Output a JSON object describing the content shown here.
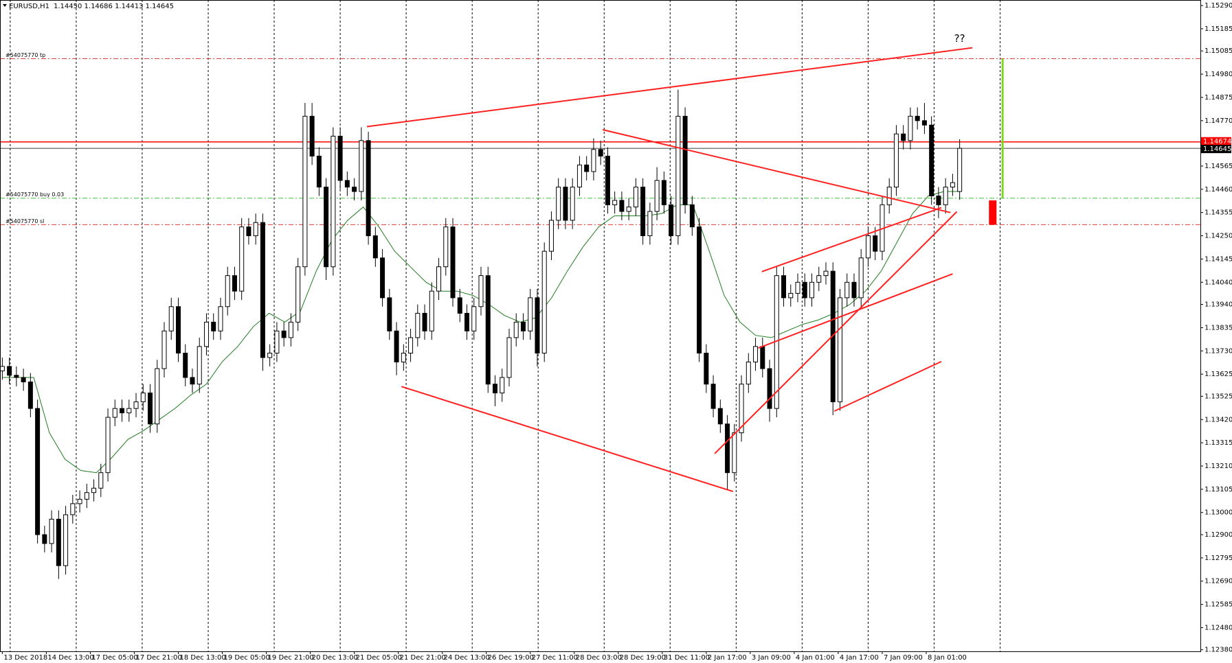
{
  "chart_data": {
    "type": "candlestick",
    "title": "EURUSD,H1",
    "quote": "1.14450 1.14686 1.14413 1.14645",
    "up_color": "#ffffff",
    "down_color": "#000000",
    "open": [
      1.1364,
      1.1366,
      1.1362,
      1.1361,
      1.1359,
      1.1347,
      1.129,
      1.1286,
      1.1297,
      1.1276,
      1.1299,
      1.1304,
      1.1306,
      1.1309,
      1.1311,
      1.1318,
      1.1343,
      1.1347,
      1.1345,
      1.1347,
      1.135,
      1.1354,
      1.134,
      1.1365,
      1.1382,
      1.1393,
      1.1372,
      1.1361,
      1.1358,
      1.1375,
      1.1386,
      1.1382,
      1.1393,
      1.1407,
      1.14,
      1.1429,
      1.1425,
      1.1431,
      1.137,
      1.1372,
      1.1382,
      1.1379,
      1.1386,
      1.1411,
      1.1479,
      1.1461,
      1.1447,
      1.1411,
      1.147,
      1.145,
      1.1447,
      1.1445,
      1.1468,
      1.1425,
      1.1415,
      1.1397,
      1.1382,
      1.1368,
      1.1372,
      1.1379,
      1.139,
      1.1382,
      1.14,
      1.1411,
      1.1429,
      1.1397,
      1.139,
      1.1382,
      1.1393,
      1.1407,
      1.1358,
      1.1354,
      1.1361,
      1.1379,
      1.1386,
      1.1382,
      1.1397,
      1.1372,
      1.1418,
      1.1432,
      1.1447,
      1.1432,
      1.1447,
      1.1457,
      1.1454,
      1.1464,
      1.1461,
      1.1439,
      1.1441,
      1.1436,
      1.1438,
      1.1447,
      1.1425,
      1.1436,
      1.145,
      1.1439,
      1.1425,
      1.1479,
      1.1439,
      1.1429,
      1.1372,
      1.1358,
      1.1347,
      1.134,
      1.1318,
      1.1336,
      1.1358,
      1.1368,
      1.1375,
      1.1365,
      1.1347,
      1.1407,
      1.1397,
      1.1399,
      1.1404,
      1.1397,
      1.1404,
      1.1407,
      1.1409,
      1.135,
      1.1397,
      1.1404,
      1.1397,
      1.1415,
      1.1425,
      1.1418,
      1.1439,
      1.1447,
      1.1471,
      1.1468,
      1.1479,
      1.1477,
      1.1475,
      1.1443,
      1.1439,
      1.1447,
      1.1445
    ],
    "high": [
      1.137,
      1.137,
      1.1366,
      1.1365,
      1.1363,
      1.1351,
      1.1294,
      1.1301,
      1.1301,
      1.1303,
      1.1308,
      1.131,
      1.1313,
      1.1315,
      1.1322,
      1.1347,
      1.1351,
      1.1351,
      1.1351,
      1.1354,
      1.1358,
      1.1358,
      1.1369,
      1.1386,
      1.1397,
      1.1397,
      1.1376,
      1.1365,
      1.1379,
      1.139,
      1.139,
      1.1397,
      1.1411,
      1.1411,
      1.1433,
      1.1433,
      1.1435,
      1.1435,
      1.1376,
      1.1386,
      1.1386,
      1.139,
      1.1415,
      1.1485,
      1.1485,
      1.1465,
      1.1451,
      1.1474,
      1.1474,
      1.1454,
      1.1451,
      1.1474,
      1.1472,
      1.1429,
      1.1419,
      1.1401,
      1.1386,
      1.1376,
      1.1383,
      1.1394,
      1.1394,
      1.1404,
      1.1415,
      1.1433,
      1.1433,
      1.1401,
      1.1394,
      1.1397,
      1.1411,
      1.1411,
      1.1362,
      1.1365,
      1.1383,
      1.139,
      1.139,
      1.1401,
      1.1401,
      1.1422,
      1.1436,
      1.1451,
      1.1451,
      1.1451,
      1.1461,
      1.1461,
      1.1469,
      1.1468,
      1.1465,
      1.1445,
      1.1445,
      1.1442,
      1.1451,
      1.1451,
      1.144,
      1.1456,
      1.1454,
      1.1443,
      1.1491,
      1.1483,
      1.1443,
      1.1433,
      1.1376,
      1.1362,
      1.1351,
      1.1344,
      1.134,
      1.1362,
      1.1372,
      1.1379,
      1.1379,
      1.1369,
      1.1411,
      1.1411,
      1.1403,
      1.1408,
      1.1408,
      1.1408,
      1.1411,
      1.1413,
      1.1413,
      1.1401,
      1.1408,
      1.1408,
      1.1419,
      1.1429,
      1.1429,
      1.1443,
      1.1451,
      1.1475,
      1.1475,
      1.1483,
      1.1483,
      1.1485,
      1.1479,
      1.1447,
      1.1451,
      1.1453,
      1.14686
    ],
    "low": [
      1.136,
      1.1358,
      1.1357,
      1.1355,
      1.1343,
      1.1286,
      1.1282,
      1.1282,
      1.127,
      1.1272,
      1.1295,
      1.13,
      1.1302,
      1.1305,
      1.1307,
      1.1314,
      1.1339,
      1.1341,
      1.1341,
      1.1343,
      1.1346,
      1.1336,
      1.1336,
      1.1361,
      1.1378,
      1.1368,
      1.1357,
      1.1354,
      1.1354,
      1.1371,
      1.1378,
      1.1378,
      1.1389,
      1.1396,
      1.1396,
      1.1421,
      1.1421,
      1.1364,
      1.1366,
      1.1368,
      1.1375,
      1.1375,
      1.1382,
      1.1407,
      1.1457,
      1.1443,
      1.1405,
      1.1407,
      1.1446,
      1.1443,
      1.1441,
      1.1441,
      1.1421,
      1.1411,
      1.1393,
      1.1378,
      1.1362,
      1.1364,
      1.1368,
      1.1375,
      1.1378,
      1.1378,
      1.1396,
      1.1407,
      1.1393,
      1.1386,
      1.1378,
      1.1378,
      1.1389,
      1.1354,
      1.1348,
      1.135,
      1.1357,
      1.1375,
      1.1378,
      1.1378,
      1.1366,
      1.1368,
      1.1414,
      1.1428,
      1.1428,
      1.1428,
      1.1443,
      1.145,
      1.145,
      1.1457,
      1.1435,
      1.1435,
      1.1432,
      1.1432,
      1.1434,
      1.1421,
      1.1421,
      1.1432,
      1.1435,
      1.1421,
      1.1421,
      1.1435,
      1.1425,
      1.1368,
      1.1354,
      1.1343,
      1.1336,
      1.131,
      1.1314,
      1.1332,
      1.1354,
      1.1364,
      1.1361,
      1.1341,
      1.1343,
      1.1393,
      1.1393,
      1.1395,
      1.1393,
      1.1393,
      1.14,
      1.1403,
      1.1344,
      1.1346,
      1.1393,
      1.1393,
      1.1393,
      1.1411,
      1.1414,
      1.1414,
      1.1435,
      1.1443,
      1.1464,
      1.1464,
      1.1473,
      1.1471,
      1.1439,
      1.1433,
      1.1435,
      1.1443,
      1.14413
    ],
    "close": [
      1.1366,
      1.1362,
      1.1361,
      1.1359,
      1.1347,
      1.129,
      1.1286,
      1.1297,
      1.1276,
      1.1299,
      1.1304,
      1.1306,
      1.1309,
      1.1311,
      1.1318,
      1.1343,
      1.1347,
      1.1345,
      1.1347,
      1.135,
      1.1354,
      1.134,
      1.1365,
      1.1382,
      1.1393,
      1.1372,
      1.1361,
      1.1358,
      1.1375,
      1.1386,
      1.1382,
      1.1393,
      1.1407,
      1.14,
      1.1429,
      1.1425,
      1.1431,
      1.137,
      1.1372,
      1.1382,
      1.1379,
      1.1386,
      1.1411,
      1.1479,
      1.1461,
      1.1447,
      1.1411,
      1.147,
      1.145,
      1.1447,
      1.1445,
      1.1468,
      1.1425,
      1.1415,
      1.1397,
      1.1382,
      1.1368,
      1.1372,
      1.1379,
      1.139,
      1.1382,
      1.14,
      1.1411,
      1.1429,
      1.1397,
      1.139,
      1.1382,
      1.1393,
      1.1407,
      1.1358,
      1.1354,
      1.1361,
      1.1379,
      1.1386,
      1.1382,
      1.1397,
      1.1372,
      1.1418,
      1.1432,
      1.1447,
      1.1432,
      1.1447,
      1.1457,
      1.1454,
      1.1464,
      1.1461,
      1.1439,
      1.1441,
      1.1436,
      1.1438,
      1.1447,
      1.1425,
      1.1436,
      1.145,
      1.1439,
      1.1425,
      1.1479,
      1.1439,
      1.1429,
      1.1372,
      1.1358,
      1.1347,
      1.134,
      1.1318,
      1.1336,
      1.1358,
      1.1368,
      1.1375,
      1.1365,
      1.1347,
      1.1407,
      1.1397,
      1.1399,
      1.1404,
      1.1397,
      1.1404,
      1.1407,
      1.1409,
      1.135,
      1.1397,
      1.1404,
      1.1397,
      1.1415,
      1.1425,
      1.1418,
      1.1439,
      1.1447,
      1.1471,
      1.1468,
      1.1479,
      1.1477,
      1.1475,
      1.1443,
      1.1439,
      1.1447,
      1.1449,
      1.14645
    ],
    "ma": {
      "color": "#1e7d1e",
      "values": [
        1.1361,
        1.1361,
        1.1361,
        1.1336,
        1.1324,
        1.1319,
        1.1318,
        1.1325,
        1.1333,
        1.1337,
        1.1342,
        1.1347,
        1.1353,
        1.1358,
        1.1368,
        1.1375,
        1.1384,
        1.139,
        1.1386,
        1.1391,
        1.1409,
        1.1423,
        1.1432,
        1.1438,
        1.1429,
        1.1418,
        1.1411,
        1.1404,
        1.14,
        1.14,
        1.1398,
        1.1394,
        1.1389,
        1.1386,
        1.1388,
        1.1397,
        1.1409,
        1.142,
        1.1429,
        1.1434,
        1.1434,
        1.1434,
        1.1435,
        1.1439,
        1.1439,
        1.1419,
        1.1398,
        1.1386,
        1.138,
        1.1379,
        1.1382,
        1.1385,
        1.1387,
        1.139,
        1.1394,
        1.14,
        1.1409,
        1.1422,
        1.1435,
        1.1443,
        1.1445,
        1.1445
      ]
    },
    "xlim": [
      -0.33,
      170.2
    ],
    "xticks": [
      {
        "value": 0,
        "label": "13 Dec 2018"
      },
      {
        "value": 6.25,
        "label": "14 Dec 13:00"
      },
      {
        "value": 12.5,
        "label": "17 Dec 05:00"
      },
      {
        "value": 18.75,
        "label": "17 Dec 21:00"
      },
      {
        "value": 25,
        "label": "18 Dec 13:00"
      },
      {
        "value": 31.25,
        "label": "19 Dec 05:00"
      },
      {
        "value": 37.5,
        "label": "19 Dec 21:00"
      },
      {
        "value": 43.75,
        "label": "20 Dec 13:00"
      },
      {
        "value": 50,
        "label": "21 Dec 05:00"
      },
      {
        "value": 56.25,
        "label": "21 Dec 21:00"
      },
      {
        "value": 62.5,
        "label": "24 Dec 13:00"
      },
      {
        "value": 68.75,
        "label": "26 Dec 19:00"
      },
      {
        "value": 75,
        "label": "27 Dec 11:00"
      },
      {
        "value": 81.25,
        "label": "28 Dec 03:00"
      },
      {
        "value": 87.5,
        "label": "28 Dec 19:00"
      },
      {
        "value": 93.75,
        "label": "31 Dec 11:00"
      },
      {
        "value": 100,
        "label": "2 Jan 17:00"
      },
      {
        "value": 106.25,
        "label": "3 Jan 09:00"
      },
      {
        "value": 112.5,
        "label": "4 Jan 01:00"
      },
      {
        "value": 118.75,
        "label": "4 Jan 17:00"
      },
      {
        "value": 125,
        "label": "7 Jan 09:00"
      },
      {
        "value": 131.25,
        "label": "8 Jan 01:00"
      }
    ],
    "vgrid": [
      1.12,
      10.5,
      19.87,
      29.25,
      38.62,
      48,
      57.37,
      66.75,
      76.12,
      85.5,
      94.87,
      104.25,
      113.62,
      123,
      132.37,
      141.75
    ],
    "ylim": [
      1.12373,
      1.15315
    ],
    "yticks": [
      {
        "value": 1.1529,
        "label": "1.15290"
      },
      1.15185,
      1.15085,
      {
        "value": 1.1498,
        "label": "1.14980"
      },
      1.14875,
      {
        "value": 1.1477,
        "label": "1.14770"
      },
      1.14565,
      {
        "value": 1.1446,
        "label": "1.14460"
      },
      1.14355,
      {
        "value": 1.1425,
        "label": "1.14250"
      },
      1.14145,
      {
        "value": 1.1404,
        "label": "1.14040"
      },
      {
        "value": 1.1394,
        "label": "1.13940"
      },
      1.13835,
      {
        "value": 1.1373,
        "label": "1.13730"
      },
      1.13625,
      1.13525,
      {
        "value": 1.1342,
        "label": "1.13420"
      },
      1.13315,
      {
        "value": 1.1321,
        "label": "1.13210"
      },
      1.13105,
      {
        "value": 1.13,
        "label": "1.13000"
      },
      {
        "value": 1.129,
        "label": "1.12900"
      },
      1.12795,
      {
        "value": 1.1269,
        "label": "1.12690"
      },
      1.12585,
      {
        "value": 1.1248,
        "label": "1.12480"
      },
      {
        "value": 1.1238,
        "label": "1.12380"
      }
    ],
    "grid": true,
    "price_lines": [
      {
        "value": 1.14674,
        "color": "#ff0000"
      },
      {
        "value": 1.14645,
        "color": "#000000"
      }
    ],
    "levels": [
      {
        "label": "#54075770 tp",
        "value": 1.1505,
        "color": "#e03a3a"
      },
      {
        "label": "#54075770 buy 0.03",
        "value": 1.1442,
        "color": "#3cbf3c"
      },
      {
        "label": "#54075770 sl",
        "value": 1.143,
        "color": "#e03a3a"
      }
    ],
    "trendlines": {
      "color": "#ff2020",
      "lines": [
        {
          "from": [
            51.8,
            1.14743
          ],
          "to": [
            137.8,
            1.15099
          ]
        },
        {
          "from": [
            85.3,
            1.14729
          ],
          "to": [
            134.7,
            1.14355
          ]
        },
        {
          "from": [
            56.7,
            1.13569
          ],
          "to": [
            103.8,
            1.13095
          ]
        },
        {
          "from": [
            101.2,
            1.13266
          ],
          "to": [
            135.6,
            1.14359
          ]
        },
        {
          "from": [
            107.9,
            1.14088
          ],
          "to": [
            133.4,
            1.14377
          ]
        },
        {
          "from": [
            107.4,
            1.13743
          ],
          "to": [
            135.0,
            1.14078
          ]
        },
        {
          "from": [
            118.2,
            1.13458
          ],
          "to": [
            133.4,
            1.13682
          ]
        }
      ]
    },
    "annotations": [
      {
        "text": "??",
        "x": 136,
        "y": 1.1514
      }
    ],
    "bars": [
      {
        "x": 142.1,
        "from": 1.1505,
        "to": 1.1442,
        "color": "#7ed321",
        "width": 3
      },
      {
        "x": 140.7,
        "from": 1.1441,
        "to": 1.143,
        "color": "#ff0000",
        "width": 11
      }
    ]
  }
}
